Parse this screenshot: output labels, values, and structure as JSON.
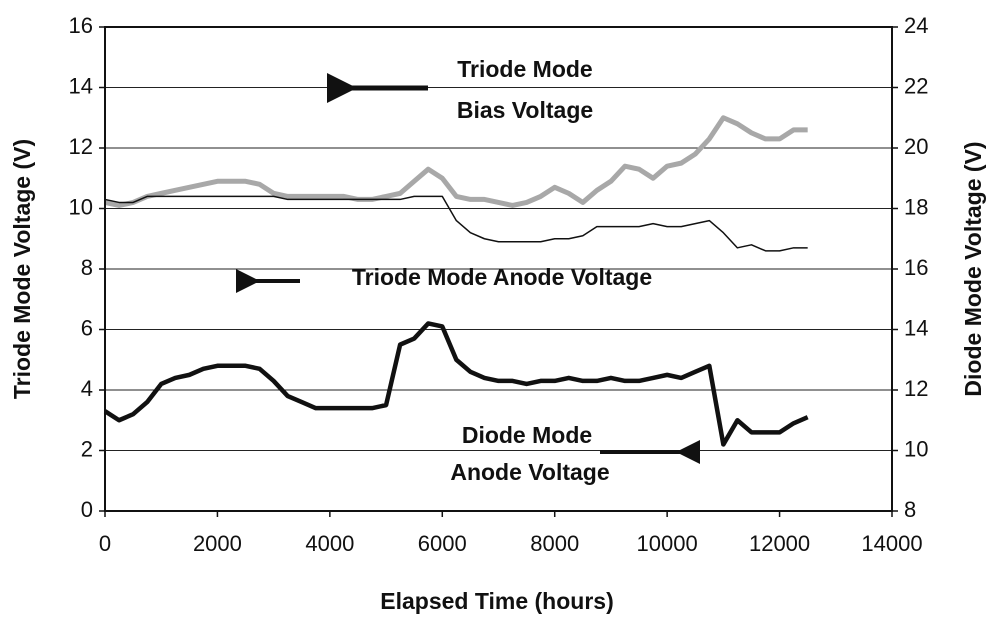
{
  "chart_data": {
    "type": "line",
    "x_label": "Elapsed Time (hours)",
    "y_label": "Triode Mode Voltage (V)",
    "y2_label": "Diode Mode Voltage (V)",
    "annotations": [
      "Triode Mode",
      "Bias Voltage",
      "Triode Mode Anode Voltage",
      "Diode Mode",
      "Anode Voltage"
    ],
    "x": [
      0,
      250,
      500,
      750,
      1000,
      1250,
      1500,
      1750,
      2000,
      2250,
      2500,
      2750,
      3000,
      3250,
      3500,
      3750,
      4000,
      4250,
      4500,
      4750,
      5000,
      5250,
      5500,
      5750,
      6000,
      6250,
      6500,
      6750,
      7000,
      7250,
      7500,
      7750,
      8000,
      8250,
      8500,
      8750,
      9000,
      9250,
      9500,
      9750,
      10000,
      10250,
      10500,
      10750,
      11000,
      11250,
      11500,
      11750,
      12000,
      12250,
      12500
    ],
    "series": [
      {
        "name": "Triode Mode Bias Voltage",
        "color": "#a8a8a8",
        "width": 5,
        "values": [
          10.2,
          10.1,
          10.2,
          10.4,
          10.5,
          10.6,
          10.7,
          10.8,
          10.9,
          10.9,
          10.9,
          10.8,
          10.5,
          10.4,
          10.4,
          10.4,
          10.4,
          10.4,
          10.3,
          10.3,
          10.4,
          10.5,
          10.9,
          11.3,
          11.0,
          10.4,
          10.3,
          10.3,
          10.2,
          10.1,
          10.2,
          10.4,
          10.7,
          10.5,
          10.2,
          10.6,
          10.9,
          11.4,
          11.3,
          11.0,
          11.4,
          11.5,
          11.8,
          12.3,
          13.0,
          12.8,
          12.5,
          12.3,
          12.3,
          12.6,
          12.6
        ]
      },
      {
        "name": "Triode Mode Anode Voltage",
        "color": "#111111",
        "width": 1.5,
        "values": [
          10.3,
          10.2,
          10.2,
          10.4,
          10.4,
          10.4,
          10.4,
          10.4,
          10.4,
          10.4,
          10.4,
          10.4,
          10.4,
          10.3,
          10.3,
          10.3,
          10.3,
          10.3,
          10.3,
          10.3,
          10.3,
          10.3,
          10.4,
          10.4,
          10.4,
          9.6,
          9.2,
          9.0,
          8.9,
          8.9,
          8.9,
          8.9,
          9.0,
          9.0,
          9.1,
          9.4,
          9.4,
          9.4,
          9.4,
          9.5,
          9.4,
          9.4,
          9.5,
          9.6,
          9.2,
          8.7,
          8.8,
          8.6,
          8.6,
          8.7,
          8.7
        ]
      },
      {
        "name": "Diode Mode Anode Voltage",
        "color": "#111111",
        "width": 4.5,
        "axis": "y2",
        "values": [
          11.3,
          11.0,
          11.2,
          11.6,
          12.2,
          12.4,
          12.5,
          12.7,
          12.8,
          12.8,
          12.8,
          12.7,
          12.3,
          11.8,
          11.6,
          11.4,
          11.4,
          11.4,
          11.4,
          11.4,
          11.5,
          13.5,
          13.7,
          14.2,
          14.1,
          13.0,
          12.6,
          12.4,
          12.3,
          12.3,
          12.2,
          12.3,
          12.3,
          12.4,
          12.3,
          12.3,
          12.4,
          12.3,
          12.3,
          12.4,
          12.5,
          12.4,
          12.6,
          12.8,
          10.2,
          11.0,
          10.6,
          10.6,
          10.6,
          10.9,
          11.1
        ]
      }
    ],
    "xlim": [
      0,
      14000
    ],
    "xticks": [
      0,
      2000,
      4000,
      6000,
      8000,
      10000,
      12000,
      14000
    ],
    "ylim": [
      0,
      16
    ],
    "yticks": [
      0,
      2,
      4,
      6,
      8,
      10,
      12,
      14,
      16
    ],
    "y2lim": [
      8,
      24
    ],
    "y2ticks": [
      8,
      10,
      12,
      14,
      16,
      18,
      20,
      22,
      24
    ],
    "grid": true
  }
}
